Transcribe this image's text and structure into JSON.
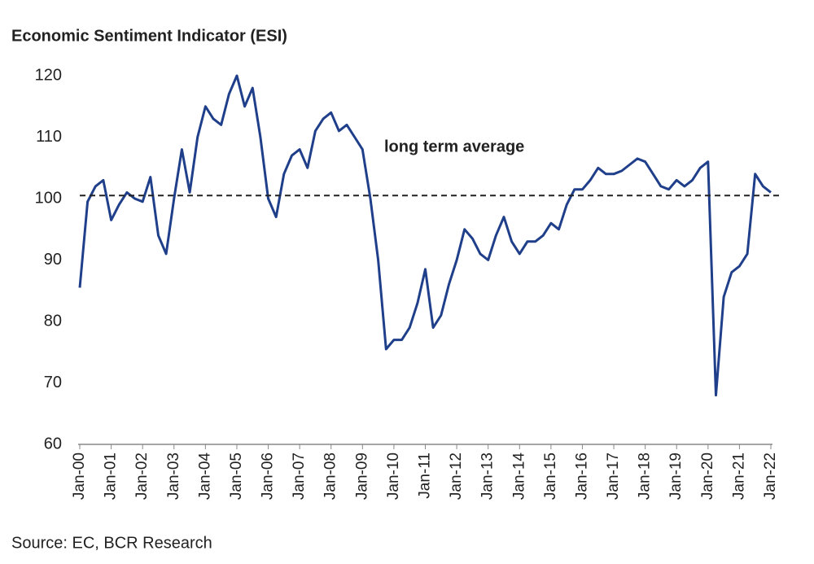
{
  "chart_data": {
    "type": "line",
    "title": "Economic Sentiment Indicator (ESI)",
    "source": "Source: EC, BCR Research",
    "annotation": "long term average",
    "average": 100.5,
    "color": "#1f3f8a",
    "categories": [
      "Jan-00",
      null,
      null,
      null,
      "Jan-01",
      null,
      null,
      null,
      "Jan-02",
      null,
      null,
      null,
      "Jan-03",
      null,
      null,
      null,
      "Jan-04",
      null,
      null,
      null,
      "Jan-05",
      null,
      null,
      null,
      "Jan-06",
      null,
      null,
      null,
      "Jan-07",
      null,
      null,
      null,
      "Jan-08",
      null,
      null,
      null,
      "Jan-09",
      null,
      null,
      null,
      "Jan-10",
      null,
      null,
      null,
      "Jan-11",
      null,
      null,
      null,
      "Jan-12",
      null,
      null,
      null,
      "Jan-13",
      null,
      null,
      null,
      "Jan-14",
      null,
      null,
      null,
      "Jan-15",
      null,
      null,
      null,
      "Jan-16",
      null,
      null,
      null,
      "Jan-17",
      null,
      null,
      null,
      "Jan-18",
      null,
      null,
      null,
      "Jan-19",
      null,
      null,
      null,
      "Jan-20",
      null,
      null,
      null,
      "Jan-21",
      null,
      null,
      null,
      "Jan-22"
    ],
    "values": [
      85.5,
      99.5,
      102,
      103,
      96.5,
      99,
      101,
      100,
      99.5,
      103.5,
      94,
      91,
      100,
      108,
      101,
      110,
      115,
      113,
      112,
      117,
      120,
      115,
      118,
      110,
      100,
      97,
      104,
      107,
      108,
      105,
      111,
      113,
      114,
      111,
      112,
      110,
      108,
      100,
      90,
      75.5,
      77,
      77,
      79,
      83,
      88.5,
      79,
      81,
      86,
      90,
      95,
      93.5,
      91,
      90,
      94,
      97,
      93,
      91,
      93,
      93,
      94,
      96,
      95,
      99,
      101.5,
      101.5,
      103,
      105,
      104,
      104,
      104.5,
      105.5,
      106.5,
      106,
      104,
      102,
      101.5,
      103,
      102,
      103,
      105,
      106,
      68,
      84,
      88,
      89,
      91,
      104,
      102,
      101
    ],
    "ylim": [
      60,
      120
    ],
    "yticks": [
      60,
      70,
      80,
      90,
      100,
      110,
      120
    ]
  }
}
